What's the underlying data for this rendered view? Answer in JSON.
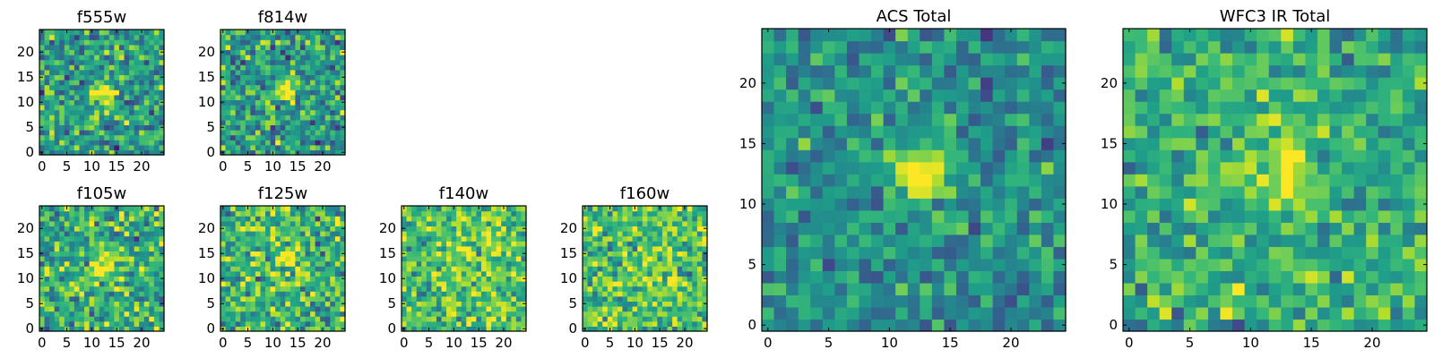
{
  "chart_data": [
    {
      "type": "heatmap",
      "title": "f555w",
      "colormap": "viridis",
      "grid": [
        25,
        25
      ],
      "xlim": [
        0,
        24
      ],
      "ylim": [
        0,
        24
      ],
      "xticks": [
        0,
        5,
        10,
        15,
        20
      ],
      "yticks": [
        0,
        5,
        10,
        15,
        20
      ],
      "source": {
        "center": [
          12.5,
          12
        ],
        "sigma": 1.6,
        "amplitude": 0.55
      },
      "background": 0.55,
      "noise": 0.22,
      "seed": 11
    },
    {
      "type": "heatmap",
      "title": "f814w",
      "colormap": "viridis",
      "grid": [
        25,
        25
      ],
      "xlim": [
        0,
        24
      ],
      "ylim": [
        0,
        24
      ],
      "xticks": [
        0,
        5,
        10,
        15,
        20
      ],
      "yticks": [
        0,
        5,
        10,
        15,
        20
      ],
      "source": {
        "center": [
          12.5,
          12.5
        ],
        "sigma": 1.5,
        "amplitude": 0.5
      },
      "background": 0.55,
      "noise": 0.22,
      "seed": 23
    },
    {
      "type": "heatmap",
      "title": "f105w",
      "colormap": "viridis",
      "grid": [
        25,
        25
      ],
      "xlim": [
        0,
        24
      ],
      "ylim": [
        0,
        24
      ],
      "xticks": [
        0,
        5,
        10,
        15,
        20
      ],
      "yticks": [
        0,
        5,
        10,
        15,
        20
      ],
      "source": {
        "center": [
          12.5,
          13
        ],
        "sigma": 2.5,
        "amplitude": 0.3
      },
      "background": 0.62,
      "noise": 0.22,
      "seed": 37
    },
    {
      "type": "heatmap",
      "title": "f125w",
      "colormap": "viridis",
      "grid": [
        25,
        25
      ],
      "xlim": [
        0,
        24
      ],
      "ylim": [
        0,
        24
      ],
      "xticks": [
        0,
        5,
        10,
        15,
        20
      ],
      "yticks": [
        0,
        5,
        10,
        15,
        20
      ],
      "source": {
        "center": [
          12.5,
          13
        ],
        "sigma": 2.5,
        "amplitude": 0.2
      },
      "background": 0.65,
      "noise": 0.22,
      "seed": 41
    },
    {
      "type": "heatmap",
      "title": "f140w",
      "colormap": "viridis",
      "grid": [
        25,
        25
      ],
      "xlim": [
        0,
        24
      ],
      "ylim": [
        0,
        24
      ],
      "xticks": [
        0,
        5,
        10,
        15,
        20
      ],
      "yticks": [
        0,
        5,
        10,
        15,
        20
      ],
      "source": {
        "center": [
          12.5,
          13
        ],
        "sigma": 2.5,
        "amplitude": 0.15
      },
      "background": 0.72,
      "noise": 0.2,
      "seed": 53
    },
    {
      "type": "heatmap",
      "title": "f160w",
      "colormap": "viridis",
      "grid": [
        25,
        25
      ],
      "xlim": [
        0,
        24
      ],
      "ylim": [
        0,
        24
      ],
      "xticks": [
        0,
        5,
        10,
        15,
        20
      ],
      "yticks": [
        0,
        5,
        10,
        15,
        20
      ],
      "source": {
        "center": [
          12.5,
          13
        ],
        "sigma": 2.5,
        "amplitude": 0.15
      },
      "background": 0.72,
      "noise": 0.2,
      "seed": 67
    },
    {
      "type": "heatmap",
      "title": "ACS Total",
      "colormap": "viridis",
      "grid": [
        25,
        25
      ],
      "xlim": [
        0,
        24
      ],
      "ylim": [
        0,
        24
      ],
      "xticks": [
        0,
        5,
        10,
        15,
        20
      ],
      "yticks": [
        0,
        5,
        10,
        15,
        20
      ],
      "source": {
        "center": [
          12.5,
          12.5
        ],
        "sigma": 1.6,
        "amplitude": 0.55
      },
      "background": 0.5,
      "noise": 0.16,
      "seed": 79
    },
    {
      "type": "heatmap",
      "title": "WFC3 IR Total",
      "colormap": "viridis",
      "grid": [
        25,
        25
      ],
      "xlim": [
        0,
        24
      ],
      "ylim": [
        0,
        24
      ],
      "xticks": [
        0,
        5,
        10,
        15,
        20
      ],
      "yticks": [
        0,
        5,
        10,
        15,
        20
      ],
      "source": {
        "center": [
          12.5,
          12.5
        ],
        "sigma": 1.8,
        "amplitude": 0.4
      },
      "background": 0.62,
      "noise": 0.17,
      "seed": 97
    }
  ]
}
